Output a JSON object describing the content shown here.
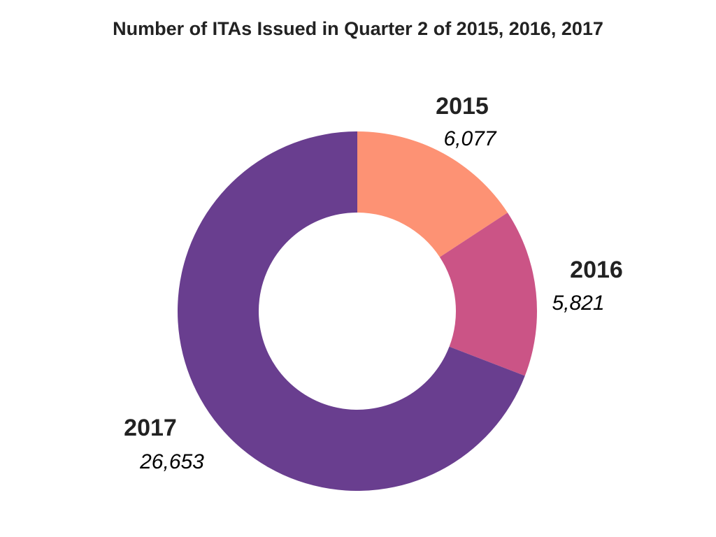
{
  "chart_data": {
    "type": "pie",
    "subtype": "donut",
    "title": "Number of ITAs Issued in Quarter 2 of 2015, 2016, 2017",
    "categories": [
      "2015",
      "2016",
      "2017"
    ],
    "values": [
      6077,
      5821,
      26653
    ],
    "value_labels": [
      "6,077",
      "5,821",
      "26,653"
    ],
    "colors": [
      "#fd9274",
      "#cb5486",
      "#693e8f"
    ],
    "legend": "none",
    "start_angle": "12 o'clock, clockwise"
  }
}
